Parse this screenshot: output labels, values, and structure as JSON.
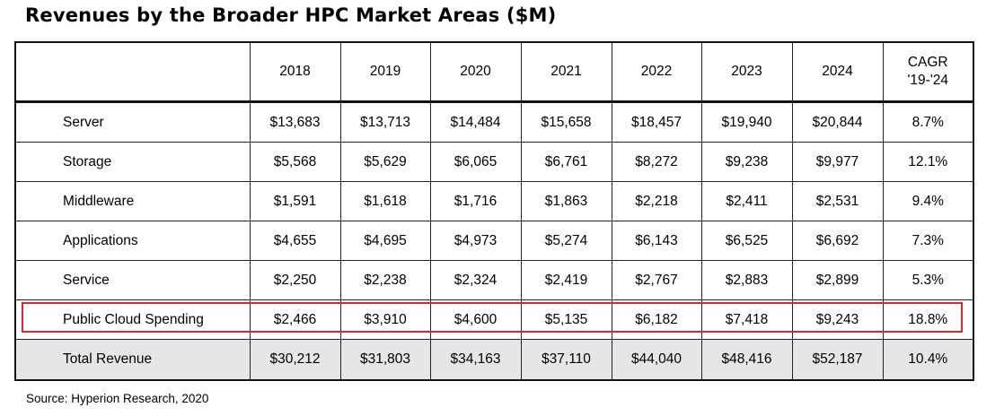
{
  "title": "Revenues by the Broader HPC Market Areas ($M)",
  "source": "Source: Hyperion Research, 2020",
  "highlight_color": "#e0242c",
  "chart_data": {
    "type": "table",
    "title": "Revenues by the Broader HPC Market Areas ($M)",
    "columns": [
      "",
      "2018",
      "2019",
      "2020",
      "2021",
      "2022",
      "2023",
      "2024",
      "CAGR '19-'24"
    ],
    "header": {
      "c2018": "2018",
      "c2019": "2019",
      "c2020": "2020",
      "c2021": "2021",
      "c2022": "2022",
      "c2023": "2023",
      "c2024": "2024",
      "cagr_line1": "CAGR",
      "cagr_line2": "'19-'24"
    },
    "rows": [
      {
        "label": "Server",
        "v2018": "$13,683",
        "v2019": "$13,713",
        "v2020": "$14,484",
        "v2021": "$15,658",
        "v2022": "$18,457",
        "v2023": "$19,940",
        "v2024": "$20,844",
        "cagr": "8.7%"
      },
      {
        "label": "Storage",
        "v2018": "$5,568",
        "v2019": "$5,629",
        "v2020": "$6,065",
        "v2021": "$6,761",
        "v2022": "$8,272",
        "v2023": "$9,238",
        "v2024": "$9,977",
        "cagr": "12.1%"
      },
      {
        "label": "Middleware",
        "v2018": "$1,591",
        "v2019": "$1,618",
        "v2020": "$1,716",
        "v2021": "$1,863",
        "v2022": "$2,218",
        "v2023": "$2,411",
        "v2024": "$2,531",
        "cagr": "9.4%"
      },
      {
        "label": "Applications",
        "v2018": "$4,655",
        "v2019": "$4,695",
        "v2020": "$4,973",
        "v2021": "$5,274",
        "v2022": "$6,143",
        "v2023": "$6,525",
        "v2024": "$6,692",
        "cagr": "7.3%"
      },
      {
        "label": "Service",
        "v2018": "$2,250",
        "v2019": "$2,238",
        "v2020": "$2,324",
        "v2021": "$2,419",
        "v2022": "$2,767",
        "v2023": "$2,883",
        "v2024": "$2,899",
        "cagr": "5.3%"
      },
      {
        "label": "Public Cloud Spending",
        "v2018": "$2,466",
        "v2019": "$3,910",
        "v2020": "$4,600",
        "v2021": "$5,135",
        "v2022": "$6,182",
        "v2023": "$7,418",
        "v2024": "$9,243",
        "cagr": "18.8%",
        "highlighted": true
      },
      {
        "label": "Total Revenue",
        "v2018": "$30,212",
        "v2019": "$31,803",
        "v2020": "$34,163",
        "v2021": "$37,110",
        "v2022": "$44,040",
        "v2023": "$48,416",
        "v2024": "$52,187",
        "cagr": "10.4%",
        "total": true
      }
    ]
  }
}
